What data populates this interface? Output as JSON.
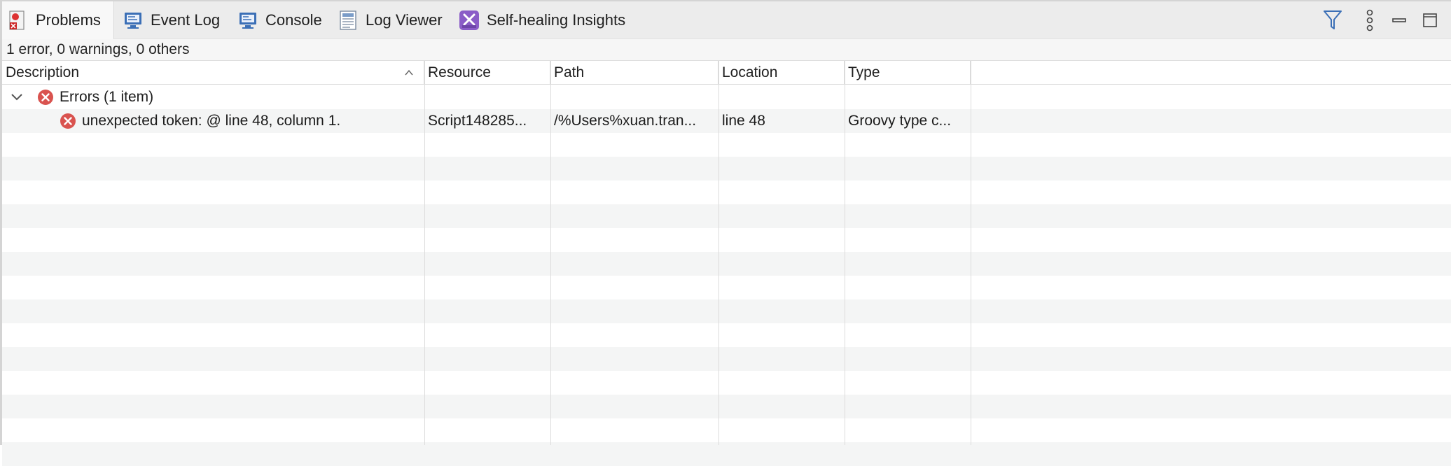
{
  "tabs": [
    {
      "label": "Problems",
      "icon": "problems-icon",
      "active": true
    },
    {
      "label": "Event Log",
      "icon": "event-log-icon"
    },
    {
      "label": "Console",
      "icon": "console-icon"
    },
    {
      "label": "Log Viewer",
      "icon": "log-viewer-icon"
    },
    {
      "label": "Self-healing Insights",
      "icon": "self-healing-icon"
    }
  ],
  "toolbar": {
    "filter_icon": "filter-icon",
    "menu_icon": "view-menu-icon",
    "minimize_icon": "minimize-icon",
    "maximize_icon": "maximize-icon"
  },
  "summary": "1 error, 0 warnings, 0 others",
  "columns": [
    "Description",
    "Resource",
    "Path",
    "Location",
    "Type"
  ],
  "sort": {
    "column": "Description",
    "direction": "ascending"
  },
  "groups": [
    {
      "label": "Errors (1 item)",
      "expanded": true,
      "items": [
        {
          "description": "unexpected token:  @ line 48, column 1.",
          "resource": "Script148285...",
          "path": "/%Users%xuan.tran...",
          "location": "line 48",
          "type": "Groovy type c..."
        }
      ]
    }
  ],
  "colors": {
    "error": "#d9534f",
    "accent": "#3b6fb6",
    "tab_bar": "#ececec",
    "row_alt": "#f4f5f5"
  }
}
